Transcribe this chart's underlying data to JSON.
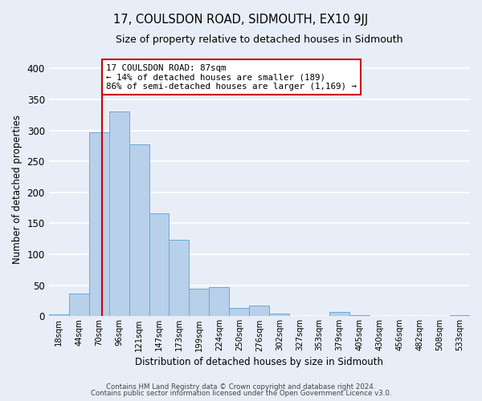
{
  "title": "17, COULSDON ROAD, SIDMOUTH, EX10 9JJ",
  "subtitle": "Size of property relative to detached houses in Sidmouth",
  "xlabel": "Distribution of detached houses by size in Sidmouth",
  "ylabel": "Number of detached properties",
  "bar_labels": [
    "18sqm",
    "44sqm",
    "70sqm",
    "96sqm",
    "121sqm",
    "147sqm",
    "173sqm",
    "199sqm",
    "224sqm",
    "250sqm",
    "276sqm",
    "302sqm",
    "327sqm",
    "353sqm",
    "379sqm",
    "405sqm",
    "430sqm",
    "456sqm",
    "482sqm",
    "508sqm",
    "533sqm"
  ],
  "bar_values": [
    3,
    37,
    297,
    330,
    277,
    166,
    124,
    44,
    47,
    13,
    17,
    5,
    1,
    0,
    7,
    2,
    0,
    1,
    0,
    0,
    2
  ],
  "bar_color": "#b8d0ea",
  "bar_edge_color": "#6aaad4",
  "ylim": [
    0,
    410
  ],
  "yticks": [
    0,
    50,
    100,
    150,
    200,
    250,
    300,
    350,
    400
  ],
  "vline_color": "#cc0000",
  "annotation_title": "17 COULSDON ROAD: 87sqm",
  "annotation_line2": "← 14% of detached houses are smaller (189)",
  "annotation_line3": "86% of semi-detached houses are larger (1,169) →",
  "annotation_box_color": "#ffffff",
  "annotation_box_edge": "#cc0000",
  "footer1": "Contains HM Land Registry data © Crown copyright and database right 2024.",
  "footer2": "Contains public sector information licensed under the Open Government Licence v3.0.",
  "background_color": "#e8eef7",
  "plot_bg_color": "#e8eef7",
  "grid_color": "#ffffff"
}
